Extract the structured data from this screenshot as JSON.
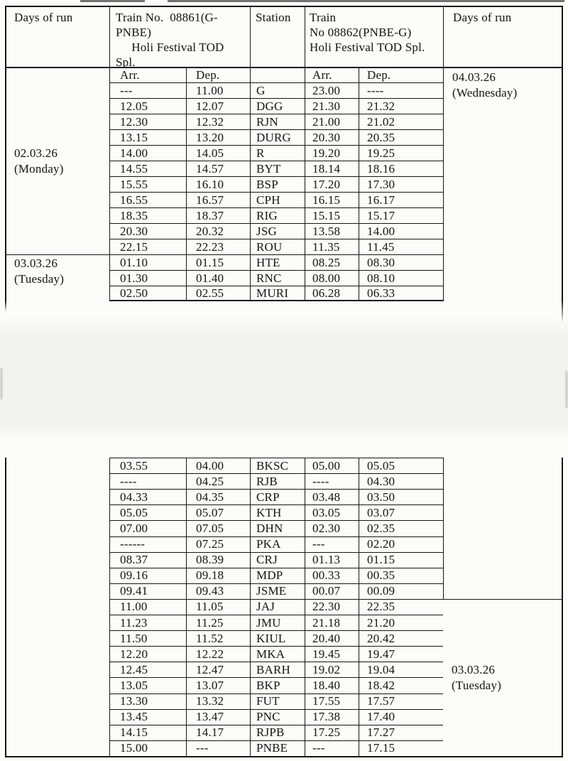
{
  "colors": {
    "paper": "#fcfcfb",
    "ink": "#1e1e1e",
    "line": "#161616",
    "artifact": "#4a4a4a"
  },
  "table_top": {
    "header": {
      "days_left": "Days of run",
      "train_outbound": "Train No.  08861(G-\nPNBE)\n     Holi Festival TOD\nSpl.",
      "station": "Station",
      "train_return": "Train\nNo 08862(PNBE-G)\nHoli Festival TOD Spl.",
      "days_right": "Days of run",
      "arr1": "Arr.",
      "dep1": "Dep.",
      "arr2": "Arr.",
      "dep2": "Dep."
    },
    "days_cells": {
      "left_monday": "02.03.26\n(Monday)",
      "left_tuesday": "03.03.26\n(Tuesday)",
      "right_wednesday": "04.03.26\n(Wednesday)"
    },
    "rows": [
      [
        "---",
        "11.00",
        "G",
        "23.00",
        "----"
      ],
      [
        "12.05",
        "12.07",
        "DGG",
        "21.30",
        "21.32"
      ],
      [
        "12.30",
        "12.32",
        "RJN",
        "21.00",
        "21.02"
      ],
      [
        "13.15",
        "13.20",
        "DURG",
        "20.30",
        "20.35"
      ],
      [
        "14.00",
        "14.05",
        "R",
        "19.20",
        "19.25"
      ],
      [
        "14.55",
        "14.57",
        "BYT",
        "18.14",
        "18.16"
      ],
      [
        "15.55",
        "16.10",
        "BSP",
        "17.20",
        "17.30"
      ],
      [
        "16.55",
        "16.57",
        "CPH",
        "16.15",
        "16.17"
      ],
      [
        "18.35",
        "18.37",
        "RIG",
        "15.15",
        "15.17"
      ],
      [
        "20.30",
        "20.32",
        "JSG",
        "13.58",
        "14.00"
      ],
      [
        "22.15",
        "22.23",
        "ROU",
        "11.35",
        "11.45"
      ],
      [
        "01.10",
        "01.15",
        "HTE",
        "08.25",
        "08.30"
      ],
      [
        "01.30",
        "01.40",
        "RNC",
        "08.00",
        "08.10"
      ],
      [
        "02.50",
        "02.55",
        "MURI",
        "06.28",
        "06.33"
      ]
    ]
  },
  "table_bottom": {
    "days_cells": {
      "right_tuesday": "03.03.26\n(Tuesday)"
    },
    "rows": [
      [
        "03.55",
        "04.00",
        "BKSC",
        "05.00",
        "05.05"
      ],
      [
        "----",
        "04.25",
        "RJB",
        "----",
        "04.30"
      ],
      [
        "04.33",
        "04.35",
        "CRP",
        "03.48",
        "03.50"
      ],
      [
        "05.05",
        "05.07",
        "KTH",
        "03.05",
        "03.07"
      ],
      [
        "07.00",
        "07.05",
        "DHN",
        "02.30",
        "02.35"
      ],
      [
        "------",
        "07.25",
        "PKA",
        "---",
        "02.20"
      ],
      [
        "08.37",
        "08.39",
        "CRJ",
        "01.13",
        "01.15"
      ],
      [
        "09.16",
        "09.18",
        "MDP",
        "00.33",
        "00.35"
      ],
      [
        "09.41",
        "09.43",
        "JSME",
        "00.07",
        "00.09"
      ],
      [
        "11.00",
        "11.05",
        "JAJ",
        "22.30",
        "22.35"
      ],
      [
        "11.23",
        "11.25",
        "JMU",
        "21.18",
        "21.20"
      ],
      [
        "11.50",
        "11.52",
        "KIUL",
        "20.40",
        "20.42"
      ],
      [
        "12.20",
        "12.22",
        "MKA",
        "19.45",
        "19.47"
      ],
      [
        "12.45",
        "12.47",
        "BARH",
        "19.02",
        "19.04"
      ],
      [
        "13.05",
        "13.07",
        "BKP",
        "18.40",
        "18.42"
      ],
      [
        "13.30",
        "13.32",
        "FUT",
        "17.55",
        "17.57"
      ],
      [
        "13.45",
        "13.47",
        "PNC",
        "17.38",
        "17.40"
      ],
      [
        "14.15",
        "14.17",
        "RJPB",
        "17.25",
        "17.27"
      ],
      [
        "15.00",
        "---",
        "PNBE",
        "---",
        "17.15"
      ]
    ]
  }
}
